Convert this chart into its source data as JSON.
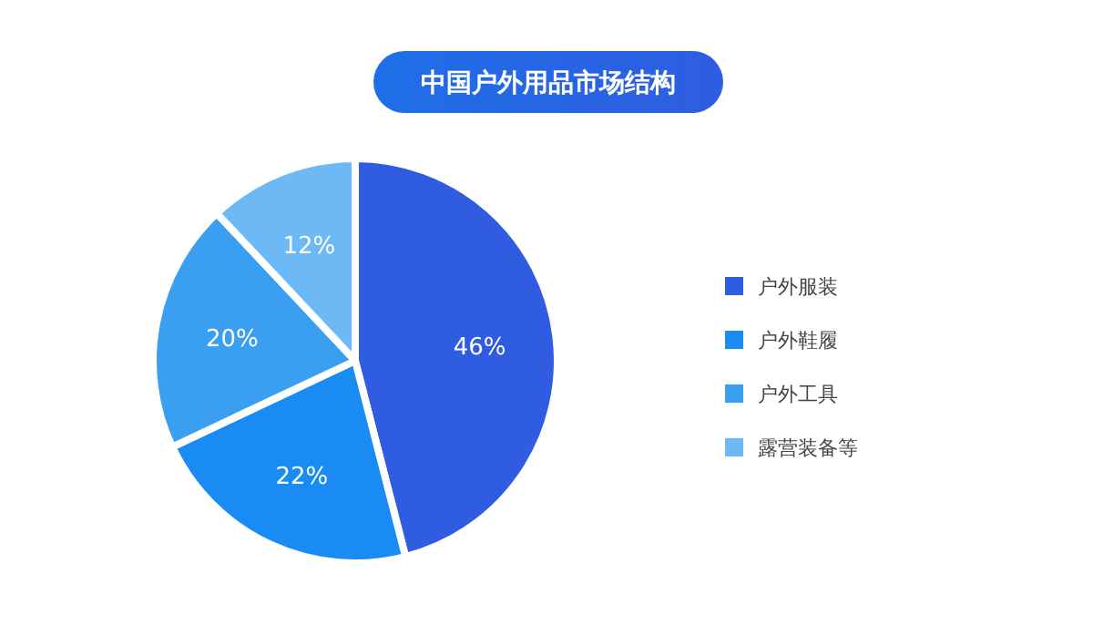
{
  "chart_data": {
    "type": "pie",
    "title": "中国户外用品市场结构",
    "categories": [
      "户外服装",
      "户外鞋履",
      "户外工具",
      "露营装备等"
    ],
    "values": [
      46,
      22,
      20,
      12
    ],
    "colors": [
      "#2f5ce0",
      "#1a8bf2",
      "#3a9ff0",
      "#6db9f6"
    ],
    "value_labels": [
      "46%",
      "22%",
      "20%",
      "12%"
    ],
    "legend": "right"
  }
}
